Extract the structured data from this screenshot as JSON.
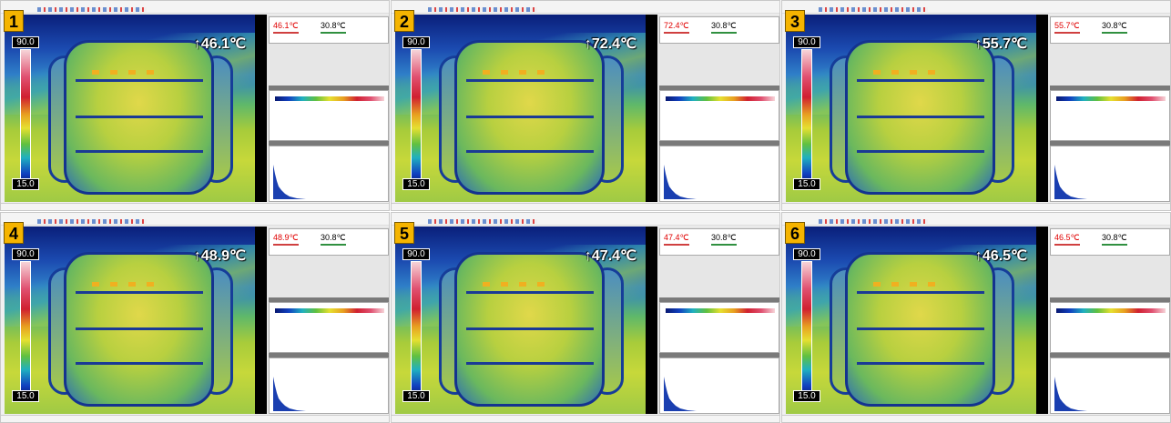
{
  "panels": [
    {
      "number": "1",
      "max_temp": "↑46.1℃",
      "scale_max": "90.0",
      "scale_min": "15.0",
      "stat_max": "46.1℃",
      "stat_avg": "30.8℃"
    },
    {
      "number": "2",
      "max_temp": "↑72.4℃",
      "scale_max": "90.0",
      "scale_min": "15.0",
      "stat_max": "72.4℃",
      "stat_avg": "30.8℃"
    },
    {
      "number": "3",
      "max_temp": "↑55.7℃",
      "scale_max": "90.0",
      "scale_min": "15.0",
      "stat_max": "55.7℃",
      "stat_avg": "30.8℃"
    },
    {
      "number": "4",
      "max_temp": "↑48.9℃",
      "scale_max": "90.0",
      "scale_min": "15.0",
      "stat_max": "48.9℃",
      "stat_avg": "30.8℃"
    },
    {
      "number": "5",
      "max_temp": "↑47.4℃",
      "scale_max": "90.0",
      "scale_min": "15.0",
      "stat_max": "47.4℃",
      "stat_avg": "30.8℃"
    },
    {
      "number": "6",
      "max_temp": "↑46.5℃",
      "scale_max": "90.0",
      "scale_min": "15.0",
      "stat_max": "46.5℃",
      "stat_avg": "30.8℃"
    }
  ]
}
